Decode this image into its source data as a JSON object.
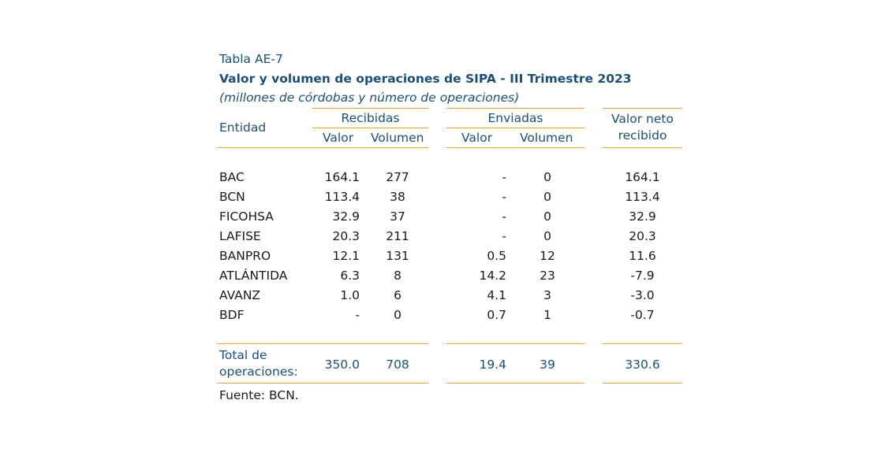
{
  "table": {
    "label": "Tabla AE-7",
    "title": "Valor y volumen de operaciones de SIPA - III Trimestre 2023",
    "subtitle": "(millones de córdobas y número de operaciones)",
    "headers": {
      "entidad": "Entidad",
      "recibidas": "Recibidas",
      "enviadas": "Enviadas",
      "valor_neto_line1": "Valor neto",
      "valor_neto_line2": "recibido",
      "valor": "Valor",
      "volumen": "Volumen"
    },
    "rows": [
      {
        "entidad": "BAC",
        "rec_valor": "164.1",
        "rec_volumen": "277",
        "env_valor": "-",
        "env_volumen": "0",
        "neto": "164.1"
      },
      {
        "entidad": "BCN",
        "rec_valor": "113.4",
        "rec_volumen": "38",
        "env_valor": "-",
        "env_volumen": "0",
        "neto": "113.4"
      },
      {
        "entidad": "FICOHSA",
        "rec_valor": "32.9",
        "rec_volumen": "37",
        "env_valor": "-",
        "env_volumen": "0",
        "neto": "32.9"
      },
      {
        "entidad": "LAFISE",
        "rec_valor": "20.3",
        "rec_volumen": "211",
        "env_valor": "-",
        "env_volumen": "0",
        "neto": "20.3"
      },
      {
        "entidad": "BANPRO",
        "rec_valor": "12.1",
        "rec_volumen": "131",
        "env_valor": "0.5",
        "env_volumen": "12",
        "neto": "11.6"
      },
      {
        "entidad": "ATLÁNTIDA",
        "rec_valor": "6.3",
        "rec_volumen": "8",
        "env_valor": "14.2",
        "env_volumen": "23",
        "neto": "-7.9"
      },
      {
        "entidad": "AVANZ",
        "rec_valor": "1.0",
        "rec_volumen": "6",
        "env_valor": "4.1",
        "env_volumen": "3",
        "neto": "-3.0"
      },
      {
        "entidad": "BDF",
        "rec_valor": "-",
        "rec_volumen": "0",
        "env_valor": "0.7",
        "env_volumen": "1",
        "neto": "-0.7"
      }
    ],
    "total": {
      "label_line1": "Total de",
      "label_line2": "operaciones:",
      "rec_valor": "350.0",
      "rec_volumen": "708",
      "env_valor": "19.4",
      "env_volumen": "39",
      "neto": "330.6"
    },
    "source": "Fuente: BCN."
  }
}
